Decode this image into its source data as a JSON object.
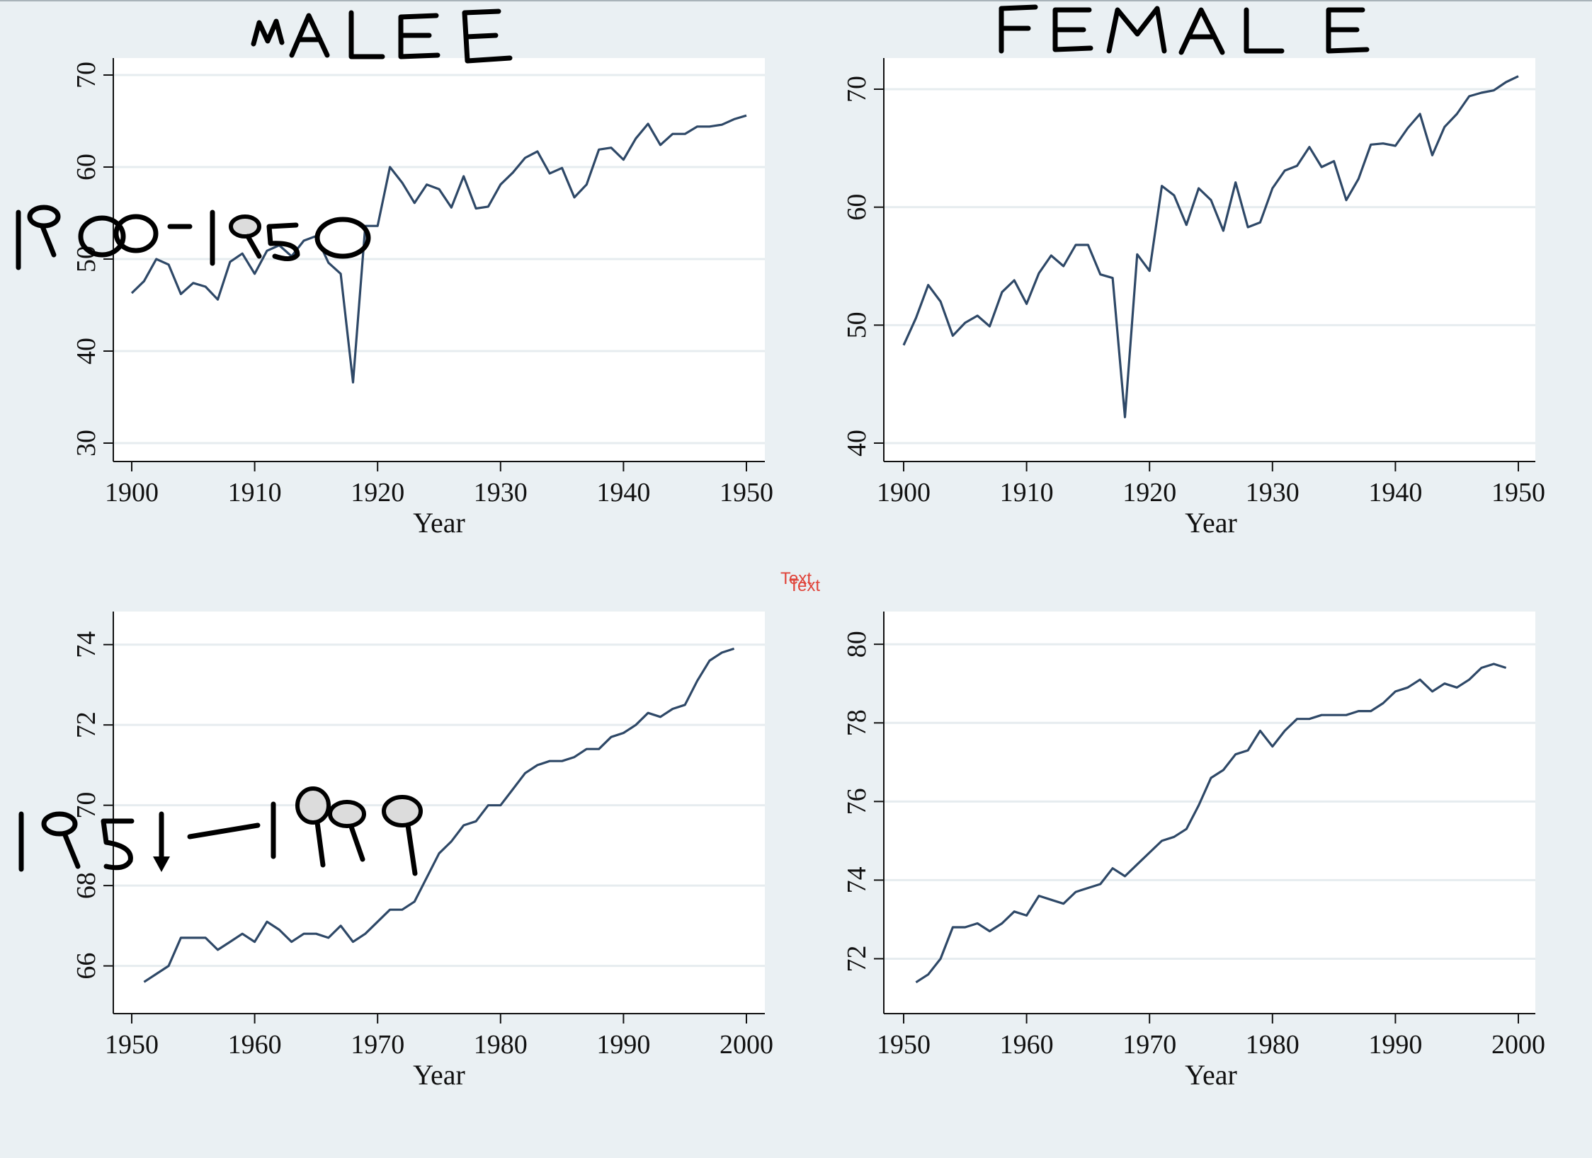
{
  "header": {
    "male_title": "MALE",
    "female_title": "FEMALE"
  },
  "annotations": {
    "period_1": "1900-1950",
    "period_2": "1951-1999",
    "stamp": "Text"
  },
  "colors": {
    "series": "#2e4867",
    "background": "#eaf0f3",
    "plot": "#ffffff",
    "grid": "#e6ecef",
    "stamp": "#e0443a"
  },
  "chart_data": [
    {
      "type": "line",
      "panel": "top-left",
      "xlabel": "Year",
      "xlim": [
        1900,
        1950
      ],
      "ylim": [
        30,
        70
      ],
      "xticks": [
        1900,
        1910,
        1920,
        1930,
        1940,
        1950
      ],
      "yticks": [
        30,
        40,
        50,
        60,
        70
      ],
      "x": [
        1900,
        1901,
        1902,
        1903,
        1904,
        1905,
        1906,
        1907,
        1908,
        1909,
        1910,
        1911,
        1912,
        1913,
        1914,
        1915,
        1916,
        1917,
        1918,
        1919,
        1920,
        1921,
        1922,
        1923,
        1924,
        1925,
        1926,
        1927,
        1928,
        1929,
        1930,
        1931,
        1932,
        1933,
        1934,
        1935,
        1936,
        1937,
        1938,
        1939,
        1940,
        1941,
        1942,
        1943,
        1944,
        1945,
        1946,
        1947,
        1948,
        1949,
        1950
      ],
      "y": [
        46.3,
        47.6,
        50.0,
        49.4,
        46.2,
        47.4,
        47.0,
        45.6,
        49.7,
        50.6,
        48.4,
        50.9,
        51.5,
        50.3,
        52.0,
        52.5,
        49.6,
        48.4,
        36.6,
        53.6,
        53.6,
        60.0,
        58.3,
        56.1,
        58.1,
        57.6,
        55.6,
        59.0,
        55.5,
        55.7,
        58.1,
        59.4,
        61.0,
        61.7,
        59.3,
        59.9,
        56.7,
        58.1,
        61.9,
        62.1,
        60.8,
        63.1,
        64.7,
        62.4,
        63.6,
        63.6,
        64.4,
        64.4,
        64.6,
        65.2,
        65.6
      ]
    },
    {
      "type": "line",
      "panel": "top-right",
      "xlabel": "Year",
      "xlim": [
        1900,
        1950
      ],
      "ylim": [
        40,
        70
      ],
      "xticks": [
        1900,
        1910,
        1920,
        1930,
        1940,
        1950
      ],
      "yticks": [
        40,
        50,
        60,
        70
      ],
      "x": [
        1900,
        1901,
        1902,
        1903,
        1904,
        1905,
        1906,
        1907,
        1908,
        1909,
        1910,
        1911,
        1912,
        1913,
        1914,
        1915,
        1916,
        1917,
        1918,
        1919,
        1920,
        1921,
        1922,
        1923,
        1924,
        1925,
        1926,
        1927,
        1928,
        1929,
        1930,
        1931,
        1932,
        1933,
        1934,
        1935,
        1936,
        1937,
        1938,
        1939,
        1940,
        1941,
        1942,
        1943,
        1944,
        1945,
        1946,
        1947,
        1948,
        1949,
        1950
      ],
      "y": [
        48.3,
        50.6,
        53.4,
        52.0,
        49.1,
        50.2,
        50.8,
        49.9,
        52.8,
        53.8,
        51.8,
        54.4,
        55.9,
        55.0,
        56.8,
        56.8,
        54.3,
        54.0,
        42.2,
        56.0,
        54.6,
        61.8,
        61.0,
        58.5,
        61.6,
        60.6,
        58.0,
        62.1,
        58.3,
        58.7,
        61.6,
        63.1,
        63.5,
        65.1,
        63.4,
        63.9,
        60.6,
        62.4,
        65.3,
        65.4,
        65.2,
        66.7,
        67.9,
        64.4,
        66.8,
        67.9,
        69.4,
        69.7,
        69.9,
        70.6,
        71.1
      ]
    },
    {
      "type": "line",
      "panel": "bottom-left",
      "xlabel": "Year",
      "xlim": [
        1950,
        2000
      ],
      "ylim": [
        65.2,
        74.4
      ],
      "xticks": [
        1950,
        1960,
        1970,
        1980,
        1990,
        2000
      ],
      "yticks": [
        66,
        68,
        70,
        72,
        74
      ],
      "x": [
        1951,
        1952,
        1953,
        1954,
        1955,
        1956,
        1957,
        1958,
        1959,
        1960,
        1961,
        1962,
        1963,
        1964,
        1965,
        1966,
        1967,
        1968,
        1969,
        1970,
        1971,
        1972,
        1973,
        1974,
        1975,
        1976,
        1977,
        1978,
        1979,
        1980,
        1981,
        1982,
        1983,
        1984,
        1985,
        1986,
        1987,
        1988,
        1989,
        1990,
        1991,
        1992,
        1993,
        1994,
        1995,
        1996,
        1997,
        1998,
        1999
      ],
      "y": [
        65.6,
        65.8,
        66.0,
        66.7,
        66.7,
        66.7,
        66.4,
        66.6,
        66.8,
        66.6,
        67.1,
        66.9,
        66.6,
        66.8,
        66.8,
        66.7,
        67.0,
        66.6,
        66.8,
        67.1,
        67.4,
        67.4,
        67.6,
        68.2,
        68.8,
        69.1,
        69.5,
        69.6,
        70.0,
        70.0,
        70.4,
        70.8,
        71.0,
        71.1,
        71.1,
        71.2,
        71.4,
        71.4,
        71.7,
        71.8,
        72.0,
        72.3,
        72.2,
        72.4,
        72.5,
        73.1,
        73.6,
        73.8,
        73.9
      ]
    },
    {
      "type": "line",
      "panel": "bottom-right",
      "xlabel": "Year",
      "xlim": [
        1950,
        2000
      ],
      "ylim": [
        71.0,
        80.4
      ],
      "xticks": [
        1950,
        1960,
        1970,
        1980,
        1990,
        2000
      ],
      "yticks": [
        72,
        74,
        76,
        78,
        80
      ],
      "x": [
        1951,
        1952,
        1953,
        1954,
        1955,
        1956,
        1957,
        1958,
        1959,
        1960,
        1961,
        1962,
        1963,
        1964,
        1965,
        1966,
        1967,
        1968,
        1969,
        1970,
        1971,
        1972,
        1973,
        1974,
        1975,
        1976,
        1977,
        1978,
        1979,
        1980,
        1981,
        1982,
        1983,
        1984,
        1985,
        1986,
        1987,
        1988,
        1989,
        1990,
        1991,
        1992,
        1993,
        1994,
        1995,
        1996,
        1997,
        1998,
        1999
      ],
      "y": [
        71.4,
        71.6,
        72.0,
        72.8,
        72.8,
        72.9,
        72.7,
        72.9,
        73.2,
        73.1,
        73.6,
        73.5,
        73.4,
        73.7,
        73.8,
        73.9,
        74.3,
        74.1,
        74.4,
        74.7,
        75.0,
        75.1,
        75.3,
        75.9,
        76.6,
        76.8,
        77.2,
        77.3,
        77.8,
        77.4,
        77.8,
        78.1,
        78.1,
        78.2,
        78.2,
        78.2,
        78.3,
        78.3,
        78.5,
        78.8,
        78.9,
        79.1,
        78.8,
        79.0,
        78.9,
        79.1,
        79.4,
        79.5,
        79.4
      ]
    }
  ]
}
